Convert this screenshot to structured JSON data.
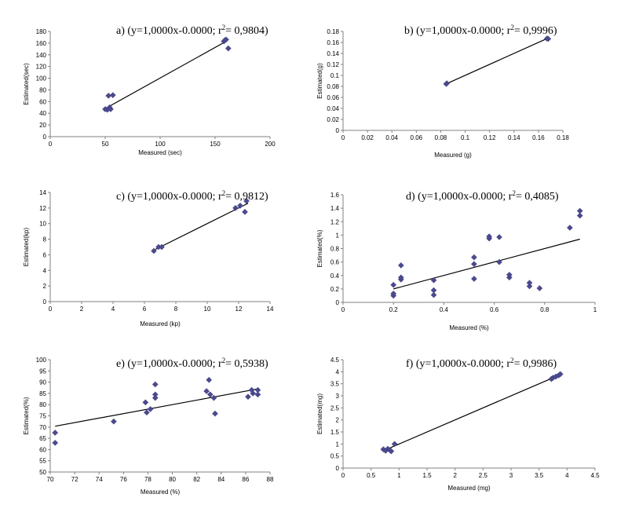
{
  "chart_data": [
    {
      "id": "a",
      "type": "scatter",
      "title": "a) (y=1,0000x-0.0000; r",
      "title_sup": "2",
      "title_end": "= 0,9804)",
      "xlabel": "Measured (sec)",
      "ylabel": "Estimated(sec)",
      "xlim": [
        0,
        200
      ],
      "ylim": [
        0,
        180
      ],
      "xticks": [
        "0",
        "50",
        "100",
        "150",
        "200"
      ],
      "yticks": [
        "0",
        "20",
        "40",
        "60",
        "80",
        "100",
        "120",
        "140",
        "160",
        "180"
      ],
      "points": [
        [
          50,
          47
        ],
        [
          52,
          46
        ],
        [
          54,
          50
        ],
        [
          55,
          47
        ],
        [
          53,
          70
        ],
        [
          57,
          71
        ],
        [
          158,
          163
        ],
        [
          159,
          165
        ],
        [
          160,
          166
        ],
        [
          162,
          151
        ]
      ],
      "trendline": [
        [
          50,
          48
        ],
        [
          160,
          163
        ]
      ],
      "marker_color": "#4b4a8f"
    },
    {
      "id": "b",
      "type": "scatter",
      "title": "b) (y=1,0000x-0.0000; r",
      "title_sup": "2",
      "title_end": "= 0,9996)",
      "xlabel": "Measured (g)",
      "ylabel": "Estimated(g)",
      "xlim": [
        0,
        0.18
      ],
      "ylim": [
        0,
        0.18
      ],
      "xticks": [
        "0",
        "0.02",
        "0.04",
        "0.06",
        "0.08",
        "0.1",
        "0.12",
        "0.14",
        "0.16",
        "0.18"
      ],
      "yticks": [
        "0",
        "0.02",
        "0.04",
        "0.06",
        "0.08",
        "0.1",
        "0.12",
        "0.14",
        "0.16",
        "0.18"
      ],
      "points": [
        [
          0.085,
          0.0855
        ],
        [
          0.0845,
          0.0845
        ],
        [
          0.167,
          0.167
        ],
        [
          0.168,
          0.1665
        ]
      ],
      "trendline": [
        [
          0.0845,
          0.0845
        ],
        [
          0.168,
          0.168
        ]
      ],
      "marker_color": "#4b4a8f"
    },
    {
      "id": "c",
      "type": "scatter",
      "title": "c) (y=1,0000x-0.0000; r",
      "title_sup": "2",
      "title_end": "= 0,9812)",
      "xlabel": "Measured (kp)",
      "ylabel": "Estimated(kp)",
      "xlim": [
        0,
        14
      ],
      "ylim": [
        0,
        14
      ],
      "xticks": [
        "0",
        "2",
        "4",
        "6",
        "8",
        "10",
        "12",
        "14"
      ],
      "yticks": [
        "0",
        "2",
        "4",
        "6",
        "8",
        "10",
        "12",
        "14"
      ],
      "points": [
        [
          6.6,
          6.5
        ],
        [
          6.9,
          7.0
        ],
        [
          7.1,
          7.0
        ],
        [
          11.8,
          12.0
        ],
        [
          12.1,
          12.3
        ],
        [
          12.4,
          11.5
        ],
        [
          12.5,
          12.9
        ]
      ],
      "trendline": [
        [
          6.7,
          6.7
        ],
        [
          12.6,
          12.6
        ]
      ],
      "marker_color": "#4b4a8f"
    },
    {
      "id": "d",
      "type": "scatter",
      "title": "d) (y=1,0000x-0.0000; r",
      "title_sup": "2",
      "title_end": "= 0,4085)",
      "xlabel": "Measured (%)",
      "ylabel": "Estimated(%)",
      "xlim": [
        0,
        1
      ],
      "ylim": [
        0,
        1.6
      ],
      "xticks": [
        "0",
        "0.2",
        "0.4",
        "0.6",
        "0.8",
        "1"
      ],
      "yticks": [
        "0",
        "0.2",
        "0.4",
        "0.6",
        "0.8",
        "1",
        "1.2",
        "1.4",
        "1.6"
      ],
      "points": [
        [
          0.2,
          0.1
        ],
        [
          0.2,
          0.13
        ],
        [
          0.2,
          0.26
        ],
        [
          0.23,
          0.34
        ],
        [
          0.23,
          0.37
        ],
        [
          0.23,
          0.55
        ],
        [
          0.36,
          0.11
        ],
        [
          0.36,
          0.18
        ],
        [
          0.36,
          0.33
        ],
        [
          0.52,
          0.35
        ],
        [
          0.52,
          0.57
        ],
        [
          0.52,
          0.67
        ],
        [
          0.58,
          0.95
        ],
        [
          0.58,
          0.98
        ],
        [
          0.62,
          0.6
        ],
        [
          0.62,
          0.97
        ],
        [
          0.66,
          0.37
        ],
        [
          0.66,
          0.41
        ],
        [
          0.74,
          0.24
        ],
        [
          0.74,
          0.29
        ],
        [
          0.78,
          0.21
        ],
        [
          0.9,
          1.11
        ],
        [
          0.94,
          1.29
        ],
        [
          0.94,
          1.36
        ]
      ],
      "trendline": [
        [
          0.2,
          0.2
        ],
        [
          0.94,
          0.94
        ]
      ],
      "marker_color": "#4b4a8f"
    },
    {
      "id": "e",
      "type": "scatter",
      "title": "e) (y=1,0000x-0.0000; r",
      "title_sup": "2",
      "title_end": "= 0,5938)",
      "xlabel": "Measured (%)",
      "ylabel": "Estimated(%)",
      "xlim": [
        70,
        88
      ],
      "ylim": [
        50,
        100
      ],
      "xticks": [
        "70",
        "72",
        "74",
        "76",
        "78",
        "80",
        "82",
        "84",
        "86",
        "88"
      ],
      "yticks": [
        "50",
        "55",
        "60",
        "65",
        "70",
        "75",
        "80",
        "85",
        "90",
        "95",
        "100"
      ],
      "points": [
        [
          70.4,
          63
        ],
        [
          70.4,
          67.5
        ],
        [
          75.2,
          72.5
        ],
        [
          77.8,
          81
        ],
        [
          77.9,
          76.5
        ],
        [
          78.2,
          78
        ],
        [
          78.6,
          83
        ],
        [
          78.6,
          84.5
        ],
        [
          78.6,
          89
        ],
        [
          82.8,
          86
        ],
        [
          83.0,
          91
        ],
        [
          83.1,
          84.5
        ],
        [
          83.4,
          83
        ],
        [
          83.5,
          76
        ],
        [
          86.2,
          83.5
        ],
        [
          86.5,
          86.5
        ],
        [
          86.6,
          85
        ],
        [
          87.0,
          84.5
        ],
        [
          87.0,
          86.5
        ]
      ],
      "trendline": [
        [
          70.4,
          70.4
        ],
        [
          87,
          87
        ]
      ],
      "marker_color": "#4b4a8f"
    },
    {
      "id": "f",
      "type": "scatter",
      "title": "f) (y=1,0000x-0.0000; r",
      "title_sup": "2",
      "title_end": "= 0,9986)",
      "xlabel": "Measured (mg)",
      "ylabel": "Estimated(mg)",
      "xlim": [
        0,
        4.5
      ],
      "ylim": [
        0,
        4.5
      ],
      "xticks": [
        "0",
        "0.5",
        "1",
        "1.5",
        "2",
        "2.5",
        "3",
        "3.5",
        "4",
        "4.5"
      ],
      "yticks": [
        "0",
        "0.5",
        "1",
        "1.5",
        "2",
        "2.5",
        "3",
        "3.5",
        "4",
        "4.5"
      ],
      "points": [
        [
          0.72,
          0.78
        ],
        [
          0.76,
          0.72
        ],
        [
          0.8,
          0.8
        ],
        [
          0.84,
          0.74
        ],
        [
          0.86,
          0.7
        ],
        [
          0.92,
          1.0
        ],
        [
          3.72,
          3.7
        ],
        [
          3.75,
          3.75
        ],
        [
          3.8,
          3.8
        ],
        [
          3.85,
          3.85
        ],
        [
          3.88,
          3.9
        ]
      ],
      "trendline": [
        [
          0.72,
          0.72
        ],
        [
          3.9,
          3.9
        ]
      ],
      "marker_color": "#4b4a8f"
    }
  ]
}
